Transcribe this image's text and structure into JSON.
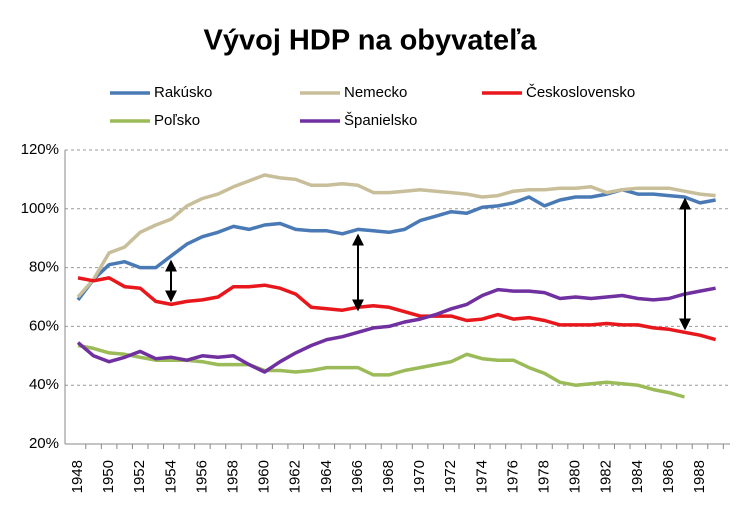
{
  "chart_data": {
    "type": "line",
    "title": "Vývoj HDP na obyvateľa",
    "categories": [
      "1948",
      null,
      "1950",
      null,
      "1952",
      null,
      "1954",
      null,
      "1956",
      null,
      "1958",
      null,
      "1960",
      null,
      "1962",
      null,
      "1964",
      null,
      "1966",
      null,
      "1968",
      null,
      "1970",
      null,
      "1972",
      null,
      "1974",
      null,
      "1976",
      null,
      "1978",
      null,
      "1980",
      null,
      "1982",
      null,
      "1984",
      null,
      "1986",
      null,
      "1988",
      null
    ],
    "series": [
      {
        "name": "Rakúsko",
        "color": "#4a7ab5",
        "values": [
          69,
          76,
          81,
          82,
          80,
          80,
          84,
          88,
          90.5,
          92,
          94,
          93,
          94.5,
          95,
          93,
          92.5,
          92.5,
          91.5,
          93,
          92.5,
          92,
          93,
          96,
          97.5,
          99,
          98.5,
          100.5,
          101,
          102,
          104,
          101,
          103,
          104,
          104,
          105,
          106.5,
          105,
          105,
          104.5,
          104,
          102,
          103
        ]
      },
      {
        "name": "Nemecko",
        "color": "#c8bf9a",
        "values": [
          70,
          76,
          85,
          87,
          92,
          94.5,
          96.5,
          101,
          103.5,
          105,
          107.5,
          109.5,
          111.5,
          110.5,
          110,
          108,
          108,
          108.5,
          108,
          105.5,
          105.5,
          106,
          106.5,
          106,
          105.5,
          105,
          104,
          104.5,
          106,
          106.5,
          106.5,
          107,
          107,
          107.5,
          105.5,
          106.5,
          107,
          107,
          107,
          106,
          105,
          104.5
        ]
      },
      {
        "name": "Československo",
        "color": "#e8171b",
        "values": [
          76.5,
          75.5,
          76.5,
          73.5,
          73,
          68.5,
          67.5,
          68.5,
          69,
          70,
          73.5,
          73.5,
          74,
          73,
          71,
          66.5,
          66,
          65.5,
          66.5,
          67,
          66.5,
          65,
          63.5,
          63.5,
          63.5,
          62,
          62.5,
          64,
          62.5,
          63,
          62,
          60.5,
          60.5,
          60.5,
          61,
          60.5,
          60.5,
          59.5,
          59,
          58,
          57,
          55.5
        ]
      },
      {
        "name": "Poľsko",
        "color": "#9bbb59",
        "values": [
          53.5,
          52.5,
          51,
          50.5,
          49.5,
          48.5,
          48.5,
          48.5,
          48,
          47,
          47,
          47,
          45,
          45,
          44.5,
          45,
          46,
          46,
          46,
          43.5,
          43.5,
          45,
          46,
          47,
          48,
          50.5,
          49,
          48.5,
          48.5,
          46,
          44,
          41,
          40,
          40.5,
          41,
          40.5,
          40,
          38.5,
          37.5,
          36,
          null,
          null
        ]
      },
      {
        "name": "Španielsko",
        "color": "#7030a0",
        "values": [
          54.5,
          50,
          48,
          49.5,
          51.5,
          49,
          49.5,
          48.5,
          50,
          49.5,
          50,
          47,
          44.5,
          48,
          51,
          53.5,
          55.5,
          56.5,
          58,
          59.5,
          60,
          61.5,
          62.5,
          64,
          66,
          67.5,
          70.5,
          72.5,
          72,
          72,
          71.5,
          69.5,
          70,
          69.5,
          70,
          70.5,
          69.5,
          69,
          69.5,
          71,
          72,
          73
        ]
      }
    ],
    "ylim": [
      20,
      120
    ],
    "yticks": [
      {
        "value": 20,
        "label": "20%"
      },
      {
        "value": 40,
        "label": "40%"
      },
      {
        "value": 60,
        "label": "60%"
      },
      {
        "value": 80,
        "label": "80%"
      },
      {
        "value": 100,
        "label": "100%"
      },
      {
        "value": 120,
        "label": "120%"
      }
    ],
    "grid": true
  }
}
